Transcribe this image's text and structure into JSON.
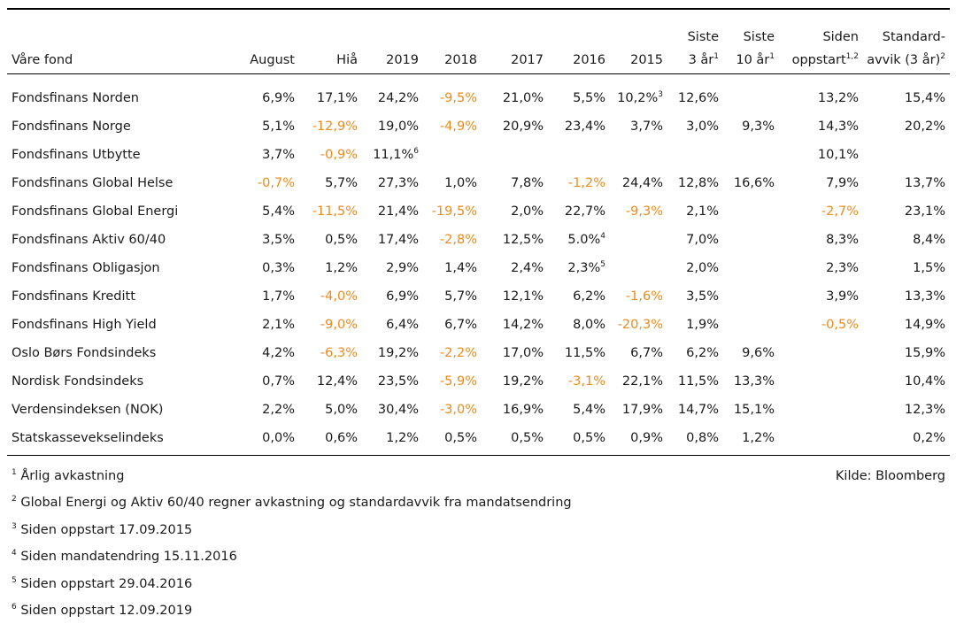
{
  "table": {
    "headers": [
      {
        "lines": [
          "Våre fond"
        ],
        "sup": ""
      },
      {
        "lines": [
          "August"
        ],
        "sup": ""
      },
      {
        "lines": [
          "Hiå"
        ],
        "sup": ""
      },
      {
        "lines": [
          "2019"
        ],
        "sup": ""
      },
      {
        "lines": [
          "2018"
        ],
        "sup": ""
      },
      {
        "lines": [
          "2017"
        ],
        "sup": ""
      },
      {
        "lines": [
          "2016"
        ],
        "sup": ""
      },
      {
        "lines": [
          "2015"
        ],
        "sup": ""
      },
      {
        "lines": [
          "Siste",
          "3 år"
        ],
        "sup": "1"
      },
      {
        "lines": [
          "Siste",
          "10 år"
        ],
        "sup": "1"
      },
      {
        "lines": [
          "Siden",
          "oppstart"
        ],
        "sup": "1,2"
      },
      {
        "lines": [
          "Standard-",
          "avvik (3 år)"
        ],
        "sup": "2"
      }
    ],
    "rows": [
      {
        "name": "Fondsfinans Norden",
        "cells": [
          {
            "v": "6,9%"
          },
          {
            "v": "17,1%"
          },
          {
            "v": "24,2%"
          },
          {
            "v": "-9,5%",
            "neg": true
          },
          {
            "v": "21,0%"
          },
          {
            "v": "5,5%"
          },
          {
            "v": "10,2%",
            "sup": "3"
          },
          {
            "v": "12,6%"
          },
          {
            "v": ""
          },
          {
            "v": "13,2%"
          },
          {
            "v": "15,4%"
          }
        ]
      },
      {
        "name": "Fondsfinans Norge",
        "cells": [
          {
            "v": "5,1%"
          },
          {
            "v": "-12,9%",
            "neg": true
          },
          {
            "v": "19,0%"
          },
          {
            "v": "-4,9%",
            "neg": true
          },
          {
            "v": "20,9%"
          },
          {
            "v": "23,4%"
          },
          {
            "v": "3,7%"
          },
          {
            "v": "3,0%"
          },
          {
            "v": "9,3%"
          },
          {
            "v": "14,3%"
          },
          {
            "v": "20,2%"
          }
        ]
      },
      {
        "name": "Fondsfinans Utbytte",
        "cells": [
          {
            "v": "3,7%"
          },
          {
            "v": "-0,9%",
            "neg": true
          },
          {
            "v": "11,1%",
            "sup": "6"
          },
          {
            "v": ""
          },
          {
            "v": ""
          },
          {
            "v": ""
          },
          {
            "v": ""
          },
          {
            "v": ""
          },
          {
            "v": ""
          },
          {
            "v": "10,1%"
          },
          {
            "v": ""
          }
        ]
      },
      {
        "name": "Fondsfinans Global Helse",
        "cells": [
          {
            "v": "-0,7%",
            "neg": true
          },
          {
            "v": "5,7%"
          },
          {
            "v": "27,3%"
          },
          {
            "v": "1,0%"
          },
          {
            "v": "7,8%"
          },
          {
            "v": "-1,2%",
            "neg": true
          },
          {
            "v": "24,4%"
          },
          {
            "v": "12,8%"
          },
          {
            "v": "16,6%"
          },
          {
            "v": "7,9%"
          },
          {
            "v": "13,7%"
          }
        ]
      },
      {
        "name": "Fondsfinans Global Energi",
        "cells": [
          {
            "v": "5,4%"
          },
          {
            "v": "-11,5%",
            "neg": true
          },
          {
            "v": "21,4%"
          },
          {
            "v": "-19,5%",
            "neg": true
          },
          {
            "v": "2,0%"
          },
          {
            "v": "22,7%"
          },
          {
            "v": "-9,3%",
            "neg": true
          },
          {
            "v": "2,1%"
          },
          {
            "v": ""
          },
          {
            "v": "-2,7%",
            "neg": true
          },
          {
            "v": "23,1%"
          }
        ]
      },
      {
        "name": "Fondsfinans Aktiv 60/40",
        "cells": [
          {
            "v": "3,5%"
          },
          {
            "v": "0,5%"
          },
          {
            "v": "17,4%"
          },
          {
            "v": "-2,8%",
            "neg": true
          },
          {
            "v": "12,5%"
          },
          {
            "v": "5.0%",
            "sup": "4"
          },
          {
            "v": ""
          },
          {
            "v": "7,0%"
          },
          {
            "v": ""
          },
          {
            "v": "8,3%"
          },
          {
            "v": "8,4%"
          }
        ]
      },
      {
        "name": "Fondsfinans Obligasjon",
        "cells": [
          {
            "v": "0,3%"
          },
          {
            "v": "1,2%"
          },
          {
            "v": "2,9%"
          },
          {
            "v": "1,4%"
          },
          {
            "v": "2,4%"
          },
          {
            "v": "2,3%",
            "sup": "5"
          },
          {
            "v": ""
          },
          {
            "v": "2,0%"
          },
          {
            "v": ""
          },
          {
            "v": "2,3%"
          },
          {
            "v": "1,5%"
          }
        ]
      },
      {
        "name": "Fondsfinans Kreditt",
        "cells": [
          {
            "v": "1,7%"
          },
          {
            "v": "-4,0%",
            "neg": true
          },
          {
            "v": "6,9%"
          },
          {
            "v": "5,7%"
          },
          {
            "v": "12,1%"
          },
          {
            "v": "6,2%"
          },
          {
            "v": "-1,6%",
            "neg": true
          },
          {
            "v": "3,5%"
          },
          {
            "v": ""
          },
          {
            "v": "3,9%"
          },
          {
            "v": "13,3%"
          }
        ]
      },
      {
        "name": "Fondsfinans High Yield",
        "cells": [
          {
            "v": "2,1%"
          },
          {
            "v": "-9,0%",
            "neg": true
          },
          {
            "v": "6,4%"
          },
          {
            "v": "6,7%"
          },
          {
            "v": "14,2%"
          },
          {
            "v": "8,0%"
          },
          {
            "v": "-20,3%",
            "neg": true
          },
          {
            "v": "1,9%"
          },
          {
            "v": ""
          },
          {
            "v": "-0,5%",
            "neg": true
          },
          {
            "v": "14,9%"
          }
        ]
      },
      {
        "name": "Oslo Børs Fondsindeks",
        "cells": [
          {
            "v": "4,2%"
          },
          {
            "v": "-6,3%",
            "neg": true
          },
          {
            "v": "19,2%"
          },
          {
            "v": "-2,2%",
            "neg": true
          },
          {
            "v": "17,0%"
          },
          {
            "v": "11,5%"
          },
          {
            "v": "6,7%"
          },
          {
            "v": "6,2%"
          },
          {
            "v": "9,6%"
          },
          {
            "v": ""
          },
          {
            "v": "15,9%"
          }
        ]
      },
      {
        "name": "Nordisk Fondsindeks",
        "cells": [
          {
            "v": "0,7%"
          },
          {
            "v": "12,4%"
          },
          {
            "v": "23,5%"
          },
          {
            "v": "-5,9%",
            "neg": true
          },
          {
            "v": "19,2%"
          },
          {
            "v": "-3,1%",
            "neg": true
          },
          {
            "v": "22,1%"
          },
          {
            "v": "11,5%"
          },
          {
            "v": "13,3%"
          },
          {
            "v": ""
          },
          {
            "v": "10,4%"
          }
        ]
      },
      {
        "name": "Verdensindeksen (NOK)",
        "cells": [
          {
            "v": "2,2%"
          },
          {
            "v": "5,0%"
          },
          {
            "v": "30,4%"
          },
          {
            "v": "-3,0%",
            "neg": true
          },
          {
            "v": "16,9%"
          },
          {
            "v": "5,4%"
          },
          {
            "v": "17,9%"
          },
          {
            "v": "14,7%"
          },
          {
            "v": "15,1%"
          },
          {
            "v": ""
          },
          {
            "v": "12,3%"
          }
        ]
      },
      {
        "name": "Statskassevekselindeks",
        "cells": [
          {
            "v": "0,0%"
          },
          {
            "v": "0,6%"
          },
          {
            "v": "1,2%"
          },
          {
            "v": "0,5%"
          },
          {
            "v": "0,5%"
          },
          {
            "v": "0,5%"
          },
          {
            "v": "0,9%"
          },
          {
            "v": "0,8%"
          },
          {
            "v": "1,2%"
          },
          {
            "v": ""
          },
          {
            "v": "0,2%"
          }
        ]
      }
    ]
  },
  "footnotes": [
    {
      "sup": "1",
      "text": "Årlig avkastning"
    },
    {
      "sup": "2",
      "text": "Global Energi og Aktiv 60/40 regner avkastning og standardavvik fra mandatsendring"
    },
    {
      "sup": "3",
      "text": "Siden oppstart 17.09.2015"
    },
    {
      "sup": "4",
      "text": "Siden mandatendring 15.11.2016"
    },
    {
      "sup": "5",
      "text": "Siden oppstart 29.04.2016"
    },
    {
      "sup": "6",
      "text": "Siden oppstart 12.09.2019"
    }
  ],
  "source": "Kilde: Bloomberg",
  "colors": {
    "negative": "#f08a1c",
    "text": "#1a1a1a",
    "rule": "#000000"
  }
}
